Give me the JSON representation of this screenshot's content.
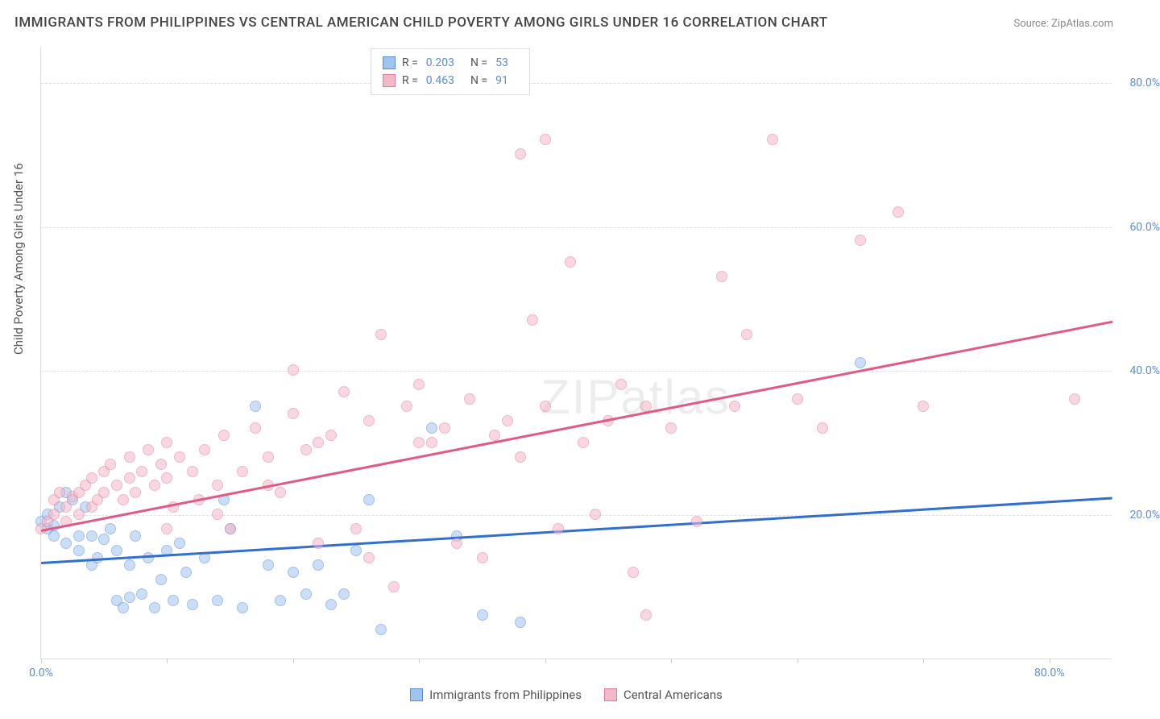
{
  "title": "IMMIGRANTS FROM PHILIPPINES VS CENTRAL AMERICAN CHILD POVERTY AMONG GIRLS UNDER 16 CORRELATION CHART",
  "source": "Source: ZipAtlas.com",
  "y_axis_label": "Child Poverty Among Girls Under 16",
  "watermark": "ZIPatlas",
  "chart": {
    "type": "scatter",
    "xlim": [
      0,
      85
    ],
    "ylim": [
      0,
      85
    ],
    "x_ticks": [
      0,
      10,
      20,
      30,
      40,
      50,
      60,
      70,
      80
    ],
    "y_gridlines": [
      20,
      40,
      60,
      80
    ],
    "x_tick_labels": {
      "0": "0.0%",
      "80": "80.0%"
    },
    "y_tick_labels": {
      "20": "20.0%",
      "40": "40.0%",
      "60": "60.0%",
      "80": "80.0%"
    },
    "background_color": "#ffffff",
    "grid_color": "#e0e0e0",
    "axis_color": "#dddddd",
    "tick_label_color": "#5b8dd6",
    "point_radius": 7,
    "point_opacity": 0.55,
    "series": [
      {
        "name": "Immigrants from Philippines",
        "color_fill": "#a0c4f2",
        "color_stroke": "#5b8dd6",
        "R": "0.203",
        "N": "53",
        "trend": {
          "x1": 0,
          "y1": 13.5,
          "x2": 85,
          "y2": 22.5,
          "color": "#2f6fd1",
          "width": 2.5
        },
        "points": [
          [
            0,
            19
          ],
          [
            0.5,
            18
          ],
          [
            0.5,
            20
          ],
          [
            1,
            17
          ],
          [
            1,
            18.5
          ],
          [
            1.5,
            21
          ],
          [
            2,
            16
          ],
          [
            2,
            23
          ],
          [
            2.5,
            22
          ],
          [
            3,
            15
          ],
          [
            3,
            17
          ],
          [
            3.5,
            21
          ],
          [
            4,
            13
          ],
          [
            4,
            17
          ],
          [
            4.5,
            14
          ],
          [
            5,
            16.5
          ],
          [
            5.5,
            18
          ],
          [
            6,
            15
          ],
          [
            6,
            8
          ],
          [
            6.5,
            7
          ],
          [
            7,
            13
          ],
          [
            7,
            8.5
          ],
          [
            7.5,
            17
          ],
          [
            8,
            9
          ],
          [
            8.5,
            14
          ],
          [
            9,
            7
          ],
          [
            9.5,
            11
          ],
          [
            10,
            15
          ],
          [
            10.5,
            8
          ],
          [
            11,
            16
          ],
          [
            11.5,
            12
          ],
          [
            12,
            7.5
          ],
          [
            13,
            14
          ],
          [
            14,
            8
          ],
          [
            14.5,
            22
          ],
          [
            15,
            18
          ],
          [
            16,
            7
          ],
          [
            17,
            35
          ],
          [
            18,
            13
          ],
          [
            19,
            8
          ],
          [
            20,
            12
          ],
          [
            21,
            9
          ],
          [
            22,
            13
          ],
          [
            23,
            7.5
          ],
          [
            24,
            9
          ],
          [
            25,
            15
          ],
          [
            26,
            22
          ],
          [
            27,
            4
          ],
          [
            31,
            32
          ],
          [
            33,
            17
          ],
          [
            35,
            6
          ],
          [
            38,
            5
          ],
          [
            65,
            41
          ]
        ]
      },
      {
        "name": "Central Americans",
        "color_fill": "#f5b8c9",
        "color_stroke": "#e47a9c",
        "R": "0.463",
        "N": "91",
        "trend": {
          "x1": 0,
          "y1": 18,
          "x2": 85,
          "y2": 47,
          "color": "#e05a84",
          "width": 2.5
        },
        "points": [
          [
            0,
            18
          ],
          [
            0.5,
            19
          ],
          [
            1,
            20
          ],
          [
            1,
            22
          ],
          [
            1.5,
            23
          ],
          [
            2,
            19
          ],
          [
            2,
            21
          ],
          [
            2.5,
            22.5
          ],
          [
            3,
            23
          ],
          [
            3,
            20
          ],
          [
            3.5,
            24
          ],
          [
            4,
            21
          ],
          [
            4,
            25
          ],
          [
            4.5,
            22
          ],
          [
            5,
            26
          ],
          [
            5,
            23
          ],
          [
            5.5,
            27
          ],
          [
            6,
            24
          ],
          [
            6.5,
            22
          ],
          [
            7,
            28
          ],
          [
            7,
            25
          ],
          [
            7.5,
            23
          ],
          [
            8,
            26
          ],
          [
            8.5,
            29
          ],
          [
            9,
            24
          ],
          [
            9.5,
            27
          ],
          [
            10,
            30
          ],
          [
            10,
            25
          ],
          [
            10.5,
            21
          ],
          [
            11,
            28
          ],
          [
            12,
            26
          ],
          [
            12.5,
            22
          ],
          [
            13,
            29
          ],
          [
            14,
            24
          ],
          [
            14.5,
            31
          ],
          [
            15,
            18
          ],
          [
            16,
            26
          ],
          [
            17,
            32
          ],
          [
            18,
            28
          ],
          [
            19,
            23
          ],
          [
            20,
            34
          ],
          [
            20,
            40
          ],
          [
            21,
            29
          ],
          [
            22,
            16
          ],
          [
            23,
            31
          ],
          [
            24,
            37
          ],
          [
            25,
            18
          ],
          [
            26,
            33
          ],
          [
            27,
            45
          ],
          [
            28,
            10
          ],
          [
            29,
            35
          ],
          [
            30,
            38
          ],
          [
            31,
            30
          ],
          [
            32,
            32
          ],
          [
            33,
            16
          ],
          [
            34,
            36
          ],
          [
            35,
            14
          ],
          [
            36,
            31
          ],
          [
            37,
            33
          ],
          [
            38,
            28
          ],
          [
            39,
            47
          ],
          [
            40,
            35
          ],
          [
            40,
            72
          ],
          [
            41,
            18
          ],
          [
            42,
            55
          ],
          [
            43,
            30
          ],
          [
            44,
            20
          ],
          [
            45,
            33
          ],
          [
            46,
            38
          ],
          [
            47,
            12
          ],
          [
            48,
            35
          ],
          [
            50,
            32
          ],
          [
            52,
            19
          ],
          [
            54,
            53
          ],
          [
            55,
            35
          ],
          [
            56,
            45
          ],
          [
            58,
            72
          ],
          [
            60,
            36
          ],
          [
            62,
            32
          ],
          [
            65,
            58
          ],
          [
            68,
            62
          ],
          [
            70,
            35
          ],
          [
            82,
            36
          ],
          [
            48,
            6
          ],
          [
            38,
            70
          ],
          [
            30,
            30
          ],
          [
            26,
            14
          ],
          [
            22,
            30
          ],
          [
            18,
            24
          ],
          [
            14,
            20
          ],
          [
            10,
            18
          ]
        ]
      }
    ]
  },
  "legend_bottom": [
    {
      "label": "Immigrants from Philippines",
      "fill": "#a0c4f2",
      "stroke": "#5b8dd6"
    },
    {
      "label": "Central Americans",
      "fill": "#f5b8c9",
      "stroke": "#e47a9c"
    }
  ]
}
